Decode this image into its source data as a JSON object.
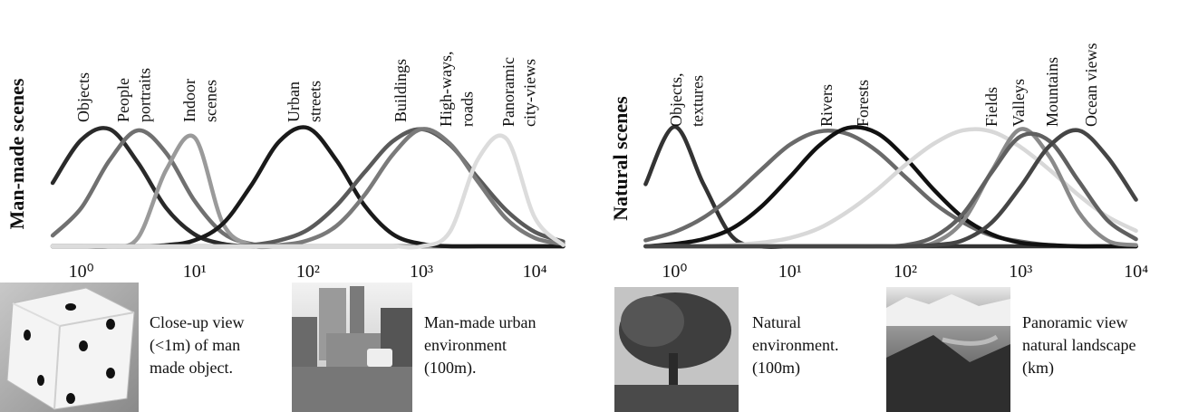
{
  "chart_data": [
    {
      "type": "line",
      "ylabel": "Man-made scenes",
      "log_x": true,
      "x": [
        0.56,
        1,
        1.78,
        3.16,
        5.62,
        10,
        17.8,
        31.6,
        56.2,
        100,
        178,
        316,
        562,
        1000,
        1780,
        3160,
        5620,
        10000,
        17800
      ],
      "xlim": [
        0.44,
        19000
      ],
      "xticks": [
        {
          "value": 1,
          "label": "10⁰"
        },
        {
          "value": 10,
          "label": "10¹"
        },
        {
          "value": 100,
          "label": "10²"
        },
        {
          "value": 1000,
          "label": "10³"
        },
        {
          "value": 10000,
          "label": "10⁴"
        }
      ],
      "ylim": [
        0,
        1
      ],
      "series": [
        {
          "name": "Objects",
          "color": "#2a2a2a",
          "values": [
            0.53,
            0.89,
            0.98,
            0.7,
            0.32,
            0.1,
            0.02,
            0,
            0,
            0,
            0,
            0,
            0,
            0,
            0,
            0,
            0,
            0,
            0
          ]
        },
        {
          "name": "People portraits",
          "color": "#707070",
          "values": [
            0.09,
            0.32,
            0.72,
            0.97,
            0.78,
            0.38,
            0.11,
            0.02,
            0,
            0,
            0,
            0,
            0,
            0,
            0,
            0,
            0,
            0,
            0
          ]
        },
        {
          "name": "Indoor scenes",
          "color": "#9a9a9a",
          "values": [
            0,
            0,
            0,
            0.07,
            0.64,
            0.91,
            0.19,
            0.01,
            0,
            0,
            0,
            0,
            0,
            0,
            0,
            0,
            0,
            0,
            0
          ]
        },
        {
          "name": "Urban streets",
          "color": "#1a1a1a",
          "values": [
            0,
            0,
            0,
            0,
            0.01,
            0.05,
            0.19,
            0.51,
            0.88,
            0.99,
            0.72,
            0.34,
            0.1,
            0.02,
            0,
            0,
            0,
            0,
            0
          ]
        },
        {
          "name": "Buildings",
          "color": "#5a5a5a",
          "values": [
            0,
            0,
            0,
            0,
            0,
            0,
            0,
            0.01,
            0.05,
            0.14,
            0.34,
            0.62,
            0.88,
            0.98,
            0.85,
            0.57,
            0.3,
            0.12,
            0.04
          ]
        },
        {
          "name": "High-ways, roads",
          "color": "#7a7a7a",
          "values": [
            0,
            0,
            0,
            0,
            0,
            0,
            0,
            0,
            0.01,
            0.05,
            0.17,
            0.43,
            0.77,
            0.98,
            0.86,
            0.54,
            0.23,
            0.07,
            0.02
          ]
        },
        {
          "name": "Panoramic city-views",
          "color": "#dcdcdc",
          "values": [
            0,
            0,
            0,
            0,
            0,
            0,
            0,
            0,
            0,
            0,
            0,
            0,
            0,
            0,
            0.12,
            0.73,
            0.9,
            0.24,
            0.01
          ]
        }
      ]
    },
    {
      "type": "line",
      "ylabel": "Natural scenes",
      "log_x": true,
      "x": [
        0.56,
        1,
        1.78,
        3.16,
        5.62,
        10,
        17.8,
        31.6,
        56.2,
        100,
        178,
        316,
        562,
        1000,
        1780,
        3160,
        5620,
        10000
      ],
      "xlim": [
        0.49,
        12300
      ],
      "xticks": [
        {
          "value": 1,
          "label": "10⁰"
        },
        {
          "value": 10,
          "label": "10¹"
        },
        {
          "value": 100,
          "label": "10²"
        },
        {
          "value": 1000,
          "label": "10³"
        },
        {
          "value": 10000,
          "label": "10⁴"
        }
      ],
      "ylim": [
        0,
        1
      ],
      "series": [
        {
          "name": "Objects, textures",
          "color": "#333333",
          "values": [
            0.52,
            1,
            0.52,
            0.08,
            0,
            0,
            0,
            0,
            0,
            0,
            0,
            0,
            0,
            0,
            0,
            0,
            0,
            0
          ]
        },
        {
          "name": "Rivers",
          "color": "#6a6a6a",
          "values": [
            0.05,
            0.12,
            0.24,
            0.42,
            0.64,
            0.85,
            0.96,
            0.94,
            0.8,
            0.58,
            0.36,
            0.2,
            0.09,
            0.04,
            0.01,
            0,
            0,
            0
          ]
        },
        {
          "name": "Forests",
          "color": "#111111",
          "values": [
            0,
            0.02,
            0.06,
            0.15,
            0.33,
            0.58,
            0.84,
            0.99,
            0.95,
            0.74,
            0.47,
            0.24,
            0.1,
            0.03,
            0.01,
            0,
            0,
            0
          ]
        },
        {
          "name": "Fields",
          "color": "#d8d8d8",
          "values": [
            0,
            0,
            0,
            0.01,
            0.03,
            0.07,
            0.15,
            0.29,
            0.47,
            0.68,
            0.86,
            0.97,
            0.96,
            0.83,
            0.64,
            0.43,
            0.25,
            0.13
          ]
        },
        {
          "name": "Valleys",
          "color": "#8a8a8a",
          "values": [
            0,
            0,
            0,
            0,
            0,
            0,
            0,
            0,
            0,
            0,
            0.03,
            0.21,
            0.63,
            0.98,
            0.75,
            0.29,
            0.05,
            0.01
          ]
        },
        {
          "name": "Mountains",
          "color": "#606060",
          "values": [
            0,
            0,
            0,
            0,
            0,
            0,
            0,
            0,
            0,
            0.01,
            0.08,
            0.27,
            0.62,
            0.92,
            0.88,
            0.55,
            0.22,
            0.06
          ]
        },
        {
          "name": "Ocean views",
          "color": "#454545",
          "values": [
            0,
            0,
            0,
            0,
            0,
            0,
            0,
            0,
            0,
            0,
            0.01,
            0.05,
            0.2,
            0.5,
            0.84,
            0.97,
            0.75,
            0.39
          ]
        }
      ]
    }
  ],
  "panels": [
    {
      "caption_lines": [
        "Close-up view",
        "(<1m) of man",
        "made object."
      ]
    },
    {
      "caption_lines": [
        "Man-made urban",
        "environment",
        "(100m)."
      ]
    },
    {
      "caption_lines": [
        "Natural",
        "environment.",
        "(100m)"
      ]
    },
    {
      "caption_lines": [
        "Panoramic view",
        "natural landscape",
        "(km)"
      ]
    }
  ]
}
